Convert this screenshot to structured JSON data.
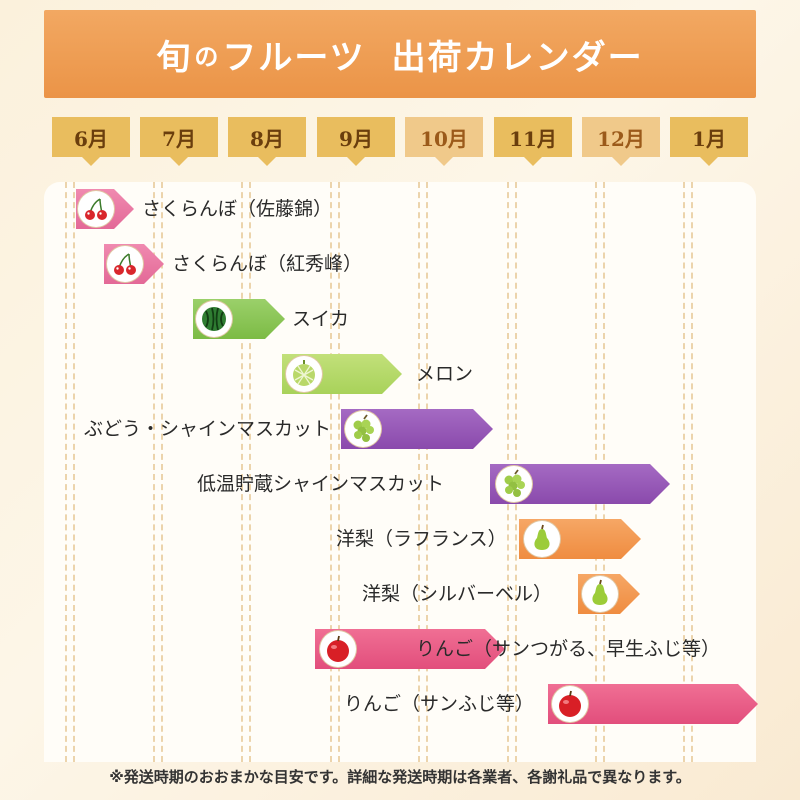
{
  "title": {
    "main_1": "旬",
    "main_2": "の",
    "main_3": "フルーツ",
    "main_4": "出荷カレンダー"
  },
  "months": [
    "6月",
    "7月",
    "8月",
    "9月",
    "10月",
    "11月",
    "12月",
    "1月"
  ],
  "fruits": [
    {
      "label": "さくらんぼ（佐藤錦）",
      "icon": "cherry-icon",
      "color": "#e36997"
    },
    {
      "label": "さくらんぼ（紅秀峰）",
      "icon": "cherry-icon",
      "color": "#e36997"
    },
    {
      "label": "スイカ",
      "icon": "watermelon-icon",
      "color": "#7cbb45"
    },
    {
      "label": "メロン",
      "icon": "melon-icon",
      "color": "#a8d25a"
    },
    {
      "label": "ぶどう・シャインマスカット",
      "icon": "grape-icon",
      "color": "#8a4aac"
    },
    {
      "label": "低温貯蔵シャインマスカット",
      "icon": "grape-icon",
      "color": "#8a4aac"
    },
    {
      "label": "洋梨（ラフランス）",
      "icon": "pear-icon",
      "color": "#ef8c40"
    },
    {
      "label": "洋梨（シルバーベル）",
      "icon": "pear-icon",
      "color": "#ef8c40"
    },
    {
      "label": "りんご（サンつがる、早生ふじ等）",
      "icon": "apple-icon",
      "color": "#e24e7c"
    },
    {
      "label": "りんご（サンふじ等）",
      "icon": "apple-icon",
      "color": "#e24e7c"
    }
  ],
  "note": "※発送時期のおおまかな目安です。詳細な発送時期は各業者、各謝礼品で異なります。"
}
